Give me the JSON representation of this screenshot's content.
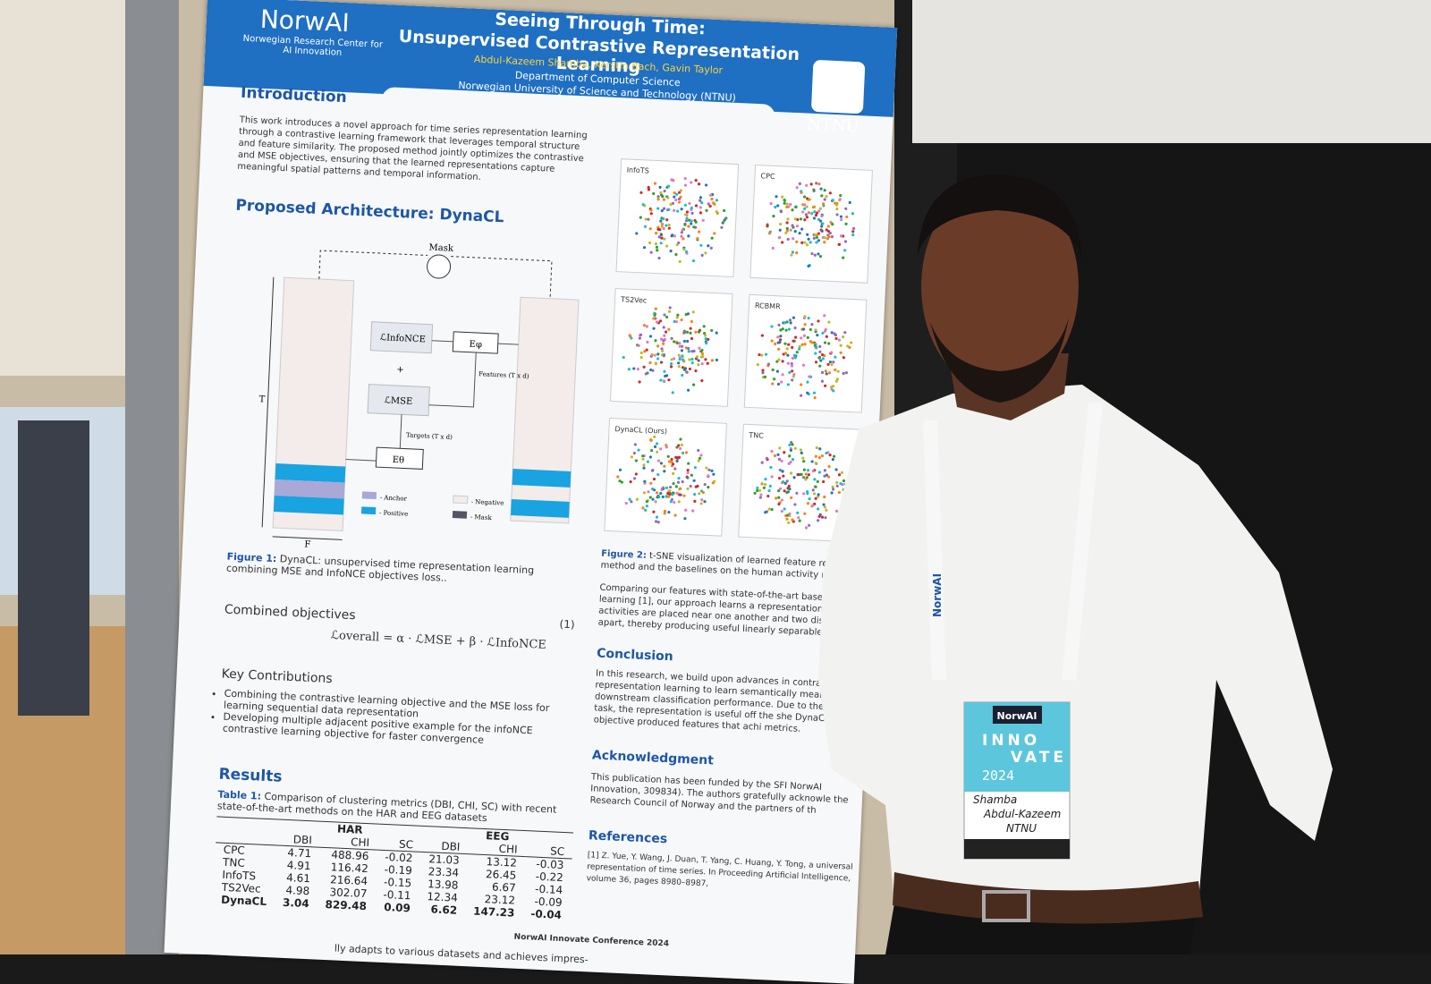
{
  "poster": {
    "header": {
      "logo": "NorwAI",
      "logo_sub": "Norwegian Research Center for AI Innovation",
      "title": "Seeing Through Time:",
      "subtitle": "Unsupervised Contrastive Representation Learning",
      "authors": "Abdul-Kazeem Shamba, Kerstin Bach, Gavin Taylor",
      "department": "Department of Computer Science",
      "university": "Norwegian University of Science and Technology (NTNU)",
      "ntnu": "NTNU"
    },
    "introduction": {
      "heading": "Introduction",
      "text": "This work introduces a novel approach for time series representation learning through a contrastive learning framework that leverages temporal structure and feature similarity. The proposed method jointly optimizes the contrastive and MSE objectives, ensuring that the learned representations capture meaningful spatial patterns and temporal information."
    },
    "architecture": {
      "heading": "Proposed Architecture: DynaCL",
      "mask": "Mask",
      "loss_infonce": "ℒInfoNCE",
      "plus": "+",
      "loss_mse": "ℒMSE",
      "enc_phi": "Eφ",
      "enc_theta": "Eθ",
      "features": "Features (T x d)",
      "targets": "Targets (T x d)",
      "axis_t": "T",
      "axis_f": "F",
      "legend_anchor": "- Anchor",
      "legend_positive": "- Positive",
      "legend_negative": "- Negative",
      "legend_mask": "- Mask",
      "caption_label": "Figure 1:",
      "caption": "DynaCL: unsupervised time representation learning combining MSE and InfoNCE objectives loss.."
    },
    "objectives": {
      "heading": "Combined objectives",
      "equation": "ℒoverall = α · ℒMSE + β · ℒInfoNCE",
      "number": "(1)"
    },
    "contributions": {
      "heading": "Key Contributions",
      "items": [
        "Combining the contrastive learning objective and the MSE loss for learning sequential data representation",
        "Developing multiple adjacent positive example for the infoNCE contrastive learning objective for faster convergence"
      ]
    },
    "results": {
      "heading": "Results",
      "caption_label": "Table 1:",
      "caption": "Comparison of clustering metrics (DBI, CHI, SC) with recent state-of-the-art methods on the HAR and EEG datasets",
      "groups": [
        "HAR",
        "EEG"
      ],
      "metrics": [
        "DBI",
        "CHI",
        "SC"
      ],
      "rows": [
        [
          "CPC",
          "4.71",
          "488.96",
          "-0.02",
          "21.03",
          "13.12",
          "-0.03"
        ],
        [
          "TNC",
          "4.91",
          "116.42",
          "-0.19",
          "23.34",
          "26.45",
          "-0.22"
        ],
        [
          "InfoTS",
          "4.61",
          "216.64",
          "-0.15",
          "13.98",
          "6.67",
          "-0.14"
        ],
        [
          "TS2Vec",
          "4.98",
          "302.07",
          "-0.11",
          "12.34",
          "23.12",
          "-0.09"
        ],
        [
          "DynaCL",
          "3.04",
          "829.48",
          "0.09",
          "6.62",
          "147.23",
          "-0.04"
        ]
      ],
      "footnote": "lly adapts to various datasets and achieves impres-"
    },
    "figure2": {
      "panels": [
        "InfoTS",
        "CPC",
        "TS2Vec",
        "RCBMR",
        "DynaCL (Ours)",
        "TNC"
      ],
      "caption_label": "Figure 2:",
      "caption": "t-SNE visualization of learned feature repres method and the baselines on the human activity recognit",
      "text": "Comparing our features with state-of-the-art baselines in learning [1], our approach learns a representation spac activities are placed near one another and two distinct a apart, thereby producing useful linearly separable feature"
    },
    "conclusion": {
      "heading": "Conclusion",
      "text": "In this research, we build upon advances in contrast representation learning to learn semantically mean downstream classification performance. Due to the pretext task, the representation is useful off the she DynaCL loss objective produced features that achi metrics."
    },
    "acknowledgment": {
      "heading": "Acknowledgment",
      "text": "This publication has been funded by the SFI NorwAI Innovation, 309834). The authors gratefully acknowle the Research Council of Norway and the partners of th"
    },
    "references": {
      "heading": "References",
      "text": "[1] Z. Yue, Y. Wang, J. Duan, T. Yang, C. Huang, Y. Tong, a universal representation of time series. In Proceeding Artificial Intelligence, volume 36, pages 8980–8987,"
    },
    "footer": "NorwAI Innovate Conference 2024"
  },
  "badge": {
    "brand": "NorwAI",
    "line1": "INNO",
    "line2": "VATE",
    "year": "2024",
    "name1": "Shamba",
    "name2": "Abdul-Kazeem",
    "org": "NTNU",
    "lanyard": "NorwAI"
  }
}
